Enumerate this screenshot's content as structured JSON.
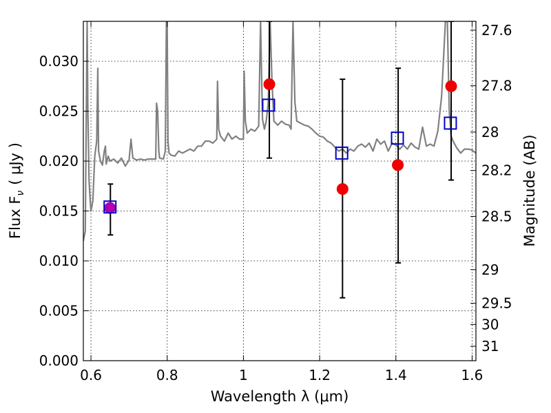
{
  "chart_data": {
    "type": "scatter",
    "title": "",
    "xlabel": "Wavelength  λ (μm)",
    "ylabel": "Flux  F",
    "ylabel_sub": "ν",
    "ylabel_unit": "( μJy )",
    "right_ylabel": "Magnitude (AB)",
    "xlim": [
      0.58,
      1.61
    ],
    "ylim": [
      0.0,
      0.034
    ],
    "x_ticks": [
      0.6,
      0.8,
      1.0,
      1.2,
      1.4,
      1.6
    ],
    "x_tick_labels": [
      "0.6",
      "0.8",
      "1",
      "1.2",
      "1.4",
      "1.6"
    ],
    "y_ticks": [
      0.0,
      0.005,
      0.01,
      0.015,
      0.02,
      0.025,
      0.03
    ],
    "y_tick_labels": [
      "0.000",
      "0.005",
      "0.010",
      "0.015",
      "0.020",
      "0.025",
      "0.030"
    ],
    "right_ticks": [
      27.6,
      27.8,
      28,
      28.2,
      28.5,
      29,
      29.5,
      30,
      31
    ],
    "right_tick_labels": [
      "27.6",
      "27.8",
      "28",
      "28.2",
      "28.5",
      "29",
      "29.5",
      "30",
      "31"
    ],
    "grid": true,
    "colors": {
      "spectrum": "#808080",
      "observed": "#ee0000",
      "observed_first": "#b000b0",
      "model": "#0000cc",
      "errorbar": "#000000"
    },
    "series": [
      {
        "kind": "line",
        "x": [
          0.58,
          0.585,
          0.59,
          0.592,
          0.595,
          0.598,
          0.6,
          0.605,
          0.61,
          0.615,
          0.618,
          0.62,
          0.625,
          0.63,
          0.635,
          0.638,
          0.64,
          0.645,
          0.65,
          0.66,
          0.67,
          0.68,
          0.69,
          0.7,
          0.705,
          0.71,
          0.715,
          0.72,
          0.73,
          0.74,
          0.75,
          0.76,
          0.77,
          0.772,
          0.775,
          0.778,
          0.78,
          0.79,
          0.795,
          0.798,
          0.8,
          0.802,
          0.805,
          0.81,
          0.82,
          0.83,
          0.84,
          0.85,
          0.86,
          0.87,
          0.88,
          0.89,
          0.9,
          0.91,
          0.92,
          0.93,
          0.932,
          0.935,
          0.94,
          0.95,
          0.96,
          0.97,
          0.98,
          0.99,
          1.0,
          1.002,
          1.005,
          1.01,
          1.02,
          1.03,
          1.04,
          1.045,
          1.05,
          1.055,
          1.06,
          1.065,
          1.07,
          1.075,
          1.08,
          1.09,
          1.1,
          1.11,
          1.12,
          1.125,
          1.13,
          1.135,
          1.14,
          1.15,
          1.16,
          1.17,
          1.18,
          1.19,
          1.2,
          1.21,
          1.22,
          1.23,
          1.24,
          1.25,
          1.26,
          1.27,
          1.28,
          1.29,
          1.3,
          1.31,
          1.32,
          1.33,
          1.34,
          1.35,
          1.36,
          1.37,
          1.38,
          1.39,
          1.4,
          1.41,
          1.42,
          1.43,
          1.44,
          1.45,
          1.46,
          1.47,
          1.48,
          1.49,
          1.5,
          1.51,
          1.52,
          1.53,
          1.535,
          1.54,
          1.545,
          1.55,
          1.56,
          1.57,
          1.58,
          1.59,
          1.6,
          1.61
        ],
        "y": [
          0.012,
          0.013,
          0.034,
          0.025,
          0.018,
          0.016,
          0.015,
          0.016,
          0.0205,
          0.022,
          0.0293,
          0.021,
          0.02,
          0.0196,
          0.021,
          0.0215,
          0.0197,
          0.0205,
          0.02,
          0.0202,
          0.0198,
          0.0203,
          0.0195,
          0.0201,
          0.0222,
          0.0203,
          0.0202,
          0.0201,
          0.0202,
          0.0201,
          0.0202,
          0.0202,
          0.0202,
          0.0258,
          0.025,
          0.021,
          0.0203,
          0.0202,
          0.021,
          0.034,
          0.034,
          0.022,
          0.0208,
          0.0206,
          0.0205,
          0.021,
          0.0208,
          0.021,
          0.0212,
          0.021,
          0.0215,
          0.0215,
          0.022,
          0.022,
          0.0218,
          0.0222,
          0.028,
          0.0232,
          0.0225,
          0.022,
          0.0228,
          0.0222,
          0.0225,
          0.0222,
          0.0222,
          0.029,
          0.024,
          0.0228,
          0.0232,
          0.023,
          0.0235,
          0.034,
          0.0242,
          0.0232,
          0.024,
          0.0258,
          0.034,
          0.028,
          0.024,
          0.0236,
          0.024,
          0.0237,
          0.0236,
          0.0232,
          0.034,
          0.026,
          0.024,
          0.0238,
          0.0236,
          0.0235,
          0.0232,
          0.0228,
          0.0225,
          0.0224,
          0.022,
          0.0218,
          0.0214,
          0.021,
          0.0212,
          0.0208,
          0.0212,
          0.021,
          0.0215,
          0.0217,
          0.0214,
          0.0218,
          0.021,
          0.0222,
          0.0217,
          0.022,
          0.021,
          0.0218,
          0.0216,
          0.0212,
          0.0216,
          0.0212,
          0.0218,
          0.0214,
          0.0212,
          0.0234,
          0.0215,
          0.0217,
          0.0215,
          0.023,
          0.0265,
          0.034,
          0.034,
          0.025,
          0.0225,
          0.022,
          0.0213,
          0.0208,
          0.0212,
          0.0212,
          0.0211,
          0.0208
        ]
      },
      {
        "kind": "points",
        "marker": "circle",
        "x": [
          0.65,
          1.068,
          1.26,
          1.405,
          1.545
        ],
        "y": [
          0.0153,
          0.0277,
          0.0172,
          0.0196,
          0.0275
        ]
      },
      {
        "kind": "points",
        "marker": "square",
        "x": [
          0.65,
          1.066,
          1.258,
          1.404,
          1.543
        ],
        "y": [
          0.0154,
          0.0256,
          0.0208,
          0.0223,
          0.0238
        ]
      },
      {
        "kind": "errorbars",
        "x": [
          0.651,
          1.068,
          1.26,
          1.406,
          1.545
        ],
        "low": [
          0.0126,
          0.0203,
          0.0063,
          0.0098,
          0.0181
        ],
        "high": [
          0.0177,
          0.034,
          0.0282,
          0.0293,
          0.034
        ]
      }
    ]
  }
}
